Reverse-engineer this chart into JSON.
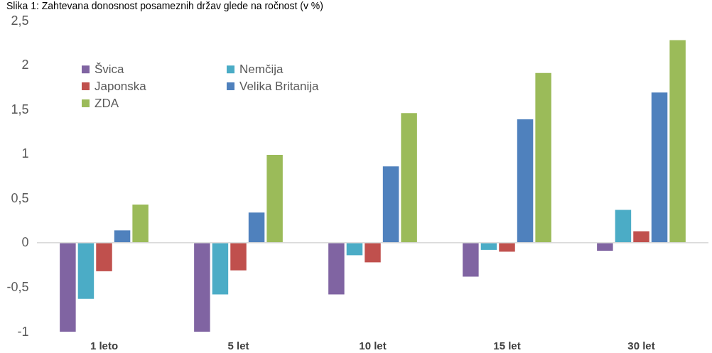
{
  "chart_data": {
    "type": "bar",
    "title": "Slika 1: Zahtevana donosnost posameznih držav glede na ročnost (v %)",
    "categories": [
      "1 leto",
      "5 let",
      "10 let",
      "15 let",
      "30 let"
    ],
    "series": [
      {
        "name": "Švica",
        "color": "#8064a2",
        "values": [
          -1,
          -1,
          -0.58,
          -0.38,
          -0.09
        ]
      },
      {
        "name": "Nemčija",
        "color": "#4bacc6",
        "values": [
          -0.63,
          -0.58,
          -0.14,
          -0.08,
          0.37
        ]
      },
      {
        "name": "Japonska",
        "color": "#c0504d",
        "values": [
          -0.32,
          -0.31,
          -0.22,
          -0.1,
          0.13
        ]
      },
      {
        "name": "Velika Britanija",
        "color": "#4f81bd",
        "values": [
          0.14,
          0.34,
          0.86,
          1.39,
          1.69
        ]
      },
      {
        "name": "ZDA",
        "color": "#9bbb59",
        "values": [
          0.43,
          0.99,
          1.46,
          1.91,
          2.28
        ]
      }
    ],
    "ylim": [
      -1,
      2.5
    ],
    "yticks": [
      -1,
      {
        "value": -0.5,
        "label": "-0,5"
      },
      0,
      {
        "value": 0.5,
        "label": "0,5"
      },
      1,
      {
        "value": 1.5,
        "label": "1,5"
      },
      2,
      {
        "value": 2.5,
        "label": "2,5"
      }
    ],
    "ref_lines": [
      {
        "axis": "y",
        "value": 0,
        "color": "#d9d9d9"
      }
    ],
    "grid": false,
    "legend": "top left"
  }
}
